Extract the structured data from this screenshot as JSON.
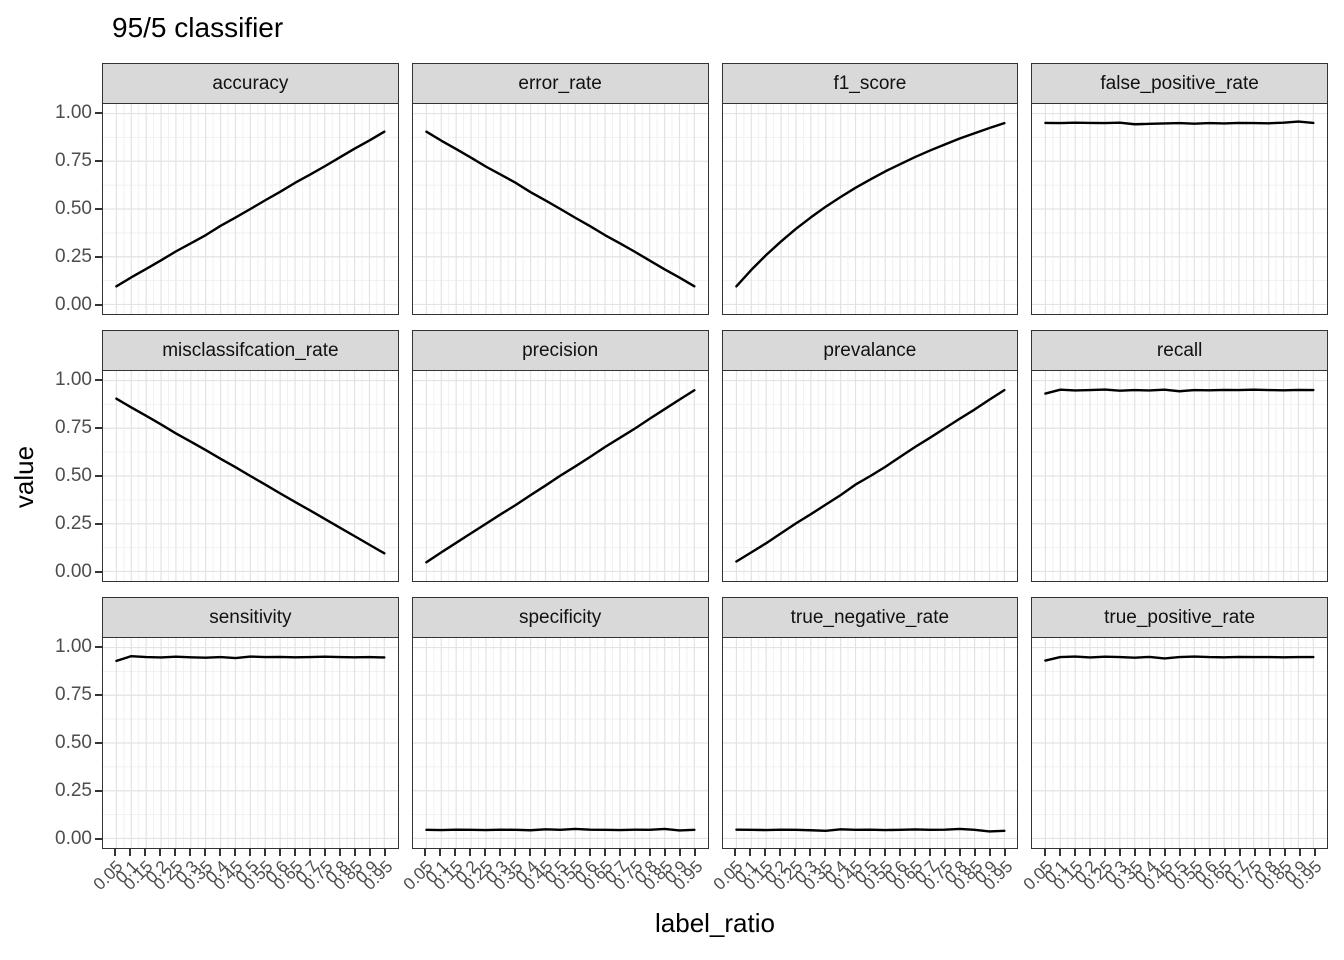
{
  "page": {
    "background": "#ffffff"
  },
  "chart_data": {
    "type": "line",
    "title": "95/5 classifier",
    "xlabel": "label_ratio",
    "ylabel": "value",
    "legend": "none",
    "grid": "major+minor",
    "layout": {
      "rows": 3,
      "cols": 4,
      "shared_axes": true
    },
    "line_color": "#000000",
    "ylim": [
      0,
      1
    ],
    "xlim": [
      0.05,
      0.95
    ],
    "x": [
      0.05,
      0.1,
      0.15,
      0.2,
      0.25,
      0.3,
      0.35,
      0.4,
      0.45,
      0.5,
      0.55,
      0.6,
      0.65,
      0.7,
      0.75,
      0.8,
      0.85,
      0.9,
      0.95
    ],
    "x_tick_labels": [
      "0.05",
      "0.1",
      "0.15",
      "0.2",
      "0.25",
      "0.3",
      "0.35",
      "0.4",
      "0.45",
      "0.5",
      "0.55",
      "0.6",
      "0.65",
      "0.7",
      "0.75",
      "0.8",
      "0.85",
      "0.9",
      "0.95"
    ],
    "y_tick_values": [
      1.0,
      0.75,
      0.5,
      0.25,
      0.0
    ],
    "y_tick_labels": [
      "1.00",
      "0.75",
      "0.50",
      "0.25",
      "0.00"
    ],
    "y_minor_values": [
      0.875,
      0.625,
      0.375,
      0.125
    ],
    "facets": [
      {
        "label": "accuracy",
        "values": [
          0.095,
          0.142,
          0.186,
          0.231,
          0.278,
          0.32,
          0.363,
          0.412,
          0.455,
          0.5,
          0.546,
          0.59,
          0.637,
          0.68,
          0.724,
          0.77,
          0.816,
          0.859,
          0.905
        ]
      },
      {
        "label": "error_rate",
        "values": [
          0.905,
          0.858,
          0.814,
          0.769,
          0.722,
          0.68,
          0.637,
          0.588,
          0.545,
          0.5,
          0.454,
          0.41,
          0.363,
          0.32,
          0.276,
          0.23,
          0.184,
          0.141,
          0.095
        ]
      },
      {
        "label": "f1_score",
        "values": [
          0.095,
          0.181,
          0.259,
          0.33,
          0.396,
          0.456,
          0.512,
          0.563,
          0.611,
          0.655,
          0.697,
          0.735,
          0.772,
          0.806,
          0.838,
          0.869,
          0.897,
          0.924,
          0.95
        ]
      },
      {
        "label": "false_positive_rate",
        "values": [
          0.951,
          0.95,
          0.952,
          0.951,
          0.95,
          0.952,
          0.944,
          0.946,
          0.948,
          0.95,
          0.947,
          0.95,
          0.948,
          0.951,
          0.95,
          0.949,
          0.952,
          0.958,
          0.951
        ]
      },
      {
        "label": "misclassifcation_rate",
        "values": [
          0.905,
          0.859,
          0.815,
          0.77,
          0.723,
          0.68,
          0.636,
          0.59,
          0.546,
          0.5,
          0.455,
          0.409,
          0.364,
          0.32,
          0.275,
          0.23,
          0.185,
          0.14,
          0.095
        ]
      },
      {
        "label": "precision",
        "values": [
          0.048,
          0.1,
          0.15,
          0.2,
          0.25,
          0.3,
          0.348,
          0.4,
          0.45,
          0.502,
          0.55,
          0.6,
          0.652,
          0.7,
          0.748,
          0.8,
          0.85,
          0.9,
          0.949
        ]
      },
      {
        "label": "prevalance",
        "values": [
          0.052,
          0.1,
          0.148,
          0.2,
          0.252,
          0.3,
          0.35,
          0.4,
          0.455,
          0.5,
          0.548,
          0.6,
          0.652,
          0.7,
          0.75,
          0.8,
          0.848,
          0.9,
          0.95
        ]
      },
      {
        "label": "recall",
        "values": [
          0.932,
          0.952,
          0.948,
          0.95,
          0.953,
          0.947,
          0.95,
          0.948,
          0.952,
          0.944,
          0.95,
          0.949,
          0.951,
          0.95,
          0.952,
          0.95,
          0.949,
          0.951,
          0.95
        ]
      },
      {
        "label": "sensitivity",
        "values": [
          0.93,
          0.955,
          0.95,
          0.948,
          0.952,
          0.949,
          0.947,
          0.95,
          0.945,
          0.953,
          0.95,
          0.951,
          0.949,
          0.95,
          0.952,
          0.95,
          0.949,
          0.95,
          0.948
        ]
      },
      {
        "label": "specificity",
        "values": [
          0.045,
          0.044,
          0.046,
          0.045,
          0.044,
          0.046,
          0.045,
          0.043,
          0.048,
          0.045,
          0.05,
          0.046,
          0.045,
          0.044,
          0.046,
          0.045,
          0.05,
          0.042,
          0.045
        ]
      },
      {
        "label": "true_negative_rate",
        "values": [
          0.046,
          0.045,
          0.044,
          0.046,
          0.045,
          0.043,
          0.04,
          0.048,
          0.045,
          0.046,
          0.044,
          0.045,
          0.047,
          0.045,
          0.046,
          0.05,
          0.045,
          0.037,
          0.04
        ]
      },
      {
        "label": "true_positive_rate",
        "values": [
          0.932,
          0.95,
          0.953,
          0.948,
          0.952,
          0.95,
          0.947,
          0.951,
          0.943,
          0.95,
          0.953,
          0.95,
          0.949,
          0.951,
          0.95,
          0.95,
          0.949,
          0.95,
          0.95
        ]
      }
    ]
  },
  "style": {
    "strip_bg": "#d9d9d9",
    "strip_border": "#333333",
    "panel_border": "#333333",
    "grid_major": "#e3e3e3",
    "grid_minor": "#f1f1f1",
    "tick_mark_color": "#333333",
    "tick_label_color": "#4d4d4d",
    "title_color": "#000000",
    "line_color": "#000000"
  }
}
